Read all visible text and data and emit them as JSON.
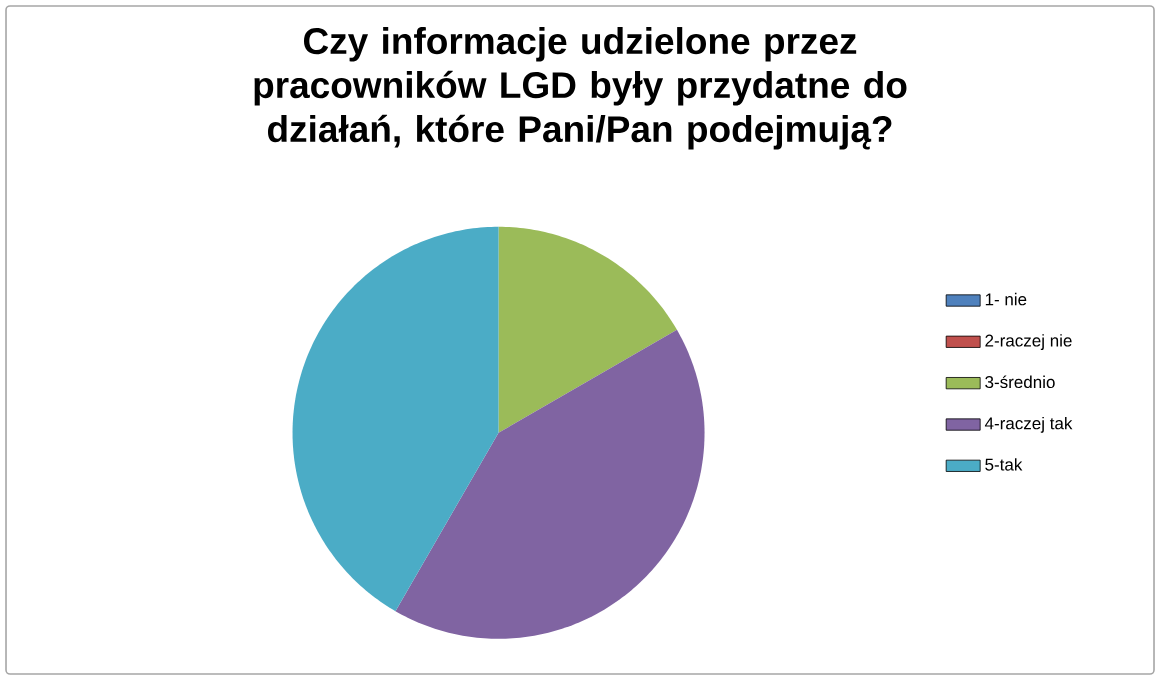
{
  "chart_data": {
    "type": "pie",
    "title": "Czy informacje udzielone przez pracowników LGD były przydatne do działań, które Pani/Pan podejmują?",
    "categories": [
      "1- nie",
      "2-raczej nie",
      "3-średnio",
      "4-raczej tak",
      "5-tak"
    ],
    "values": [
      0,
      0,
      16.67,
      41.67,
      41.66
    ],
    "colors": [
      "#4f81bd",
      "#c0504d",
      "#9bbb59",
      "#8064a2",
      "#4bacc6"
    ],
    "legend": "right"
  }
}
